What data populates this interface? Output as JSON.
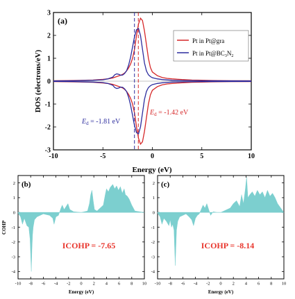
{
  "chart_data": [
    {
      "panel": "(a)",
      "type": "line",
      "xlabel": "Energy (eV)",
      "ylabel": "DOS (electrons/eV)",
      "xlim": [
        -10,
        10
      ],
      "ylim": [
        -3,
        3
      ],
      "xticks": [
        -10,
        -5,
        0,
        5,
        10
      ],
      "yticks": [
        -3,
        -2,
        -1,
        0,
        1,
        2,
        3
      ],
      "legend_position": "top-right",
      "series": [
        {
          "name": "Pt in Pt@gra",
          "color": "#d62728",
          "x": [
            -10,
            -8,
            -6,
            -5,
            -4.5,
            -4,
            -3.6,
            -3.2,
            -3.0,
            -2.8,
            -2.6,
            -2.4,
            -2.2,
            -2.0,
            -1.8,
            -1.6,
            -1.4,
            -1.2,
            -1.0,
            -0.8,
            -0.6,
            -0.4,
            -0.2,
            0,
            0.5,
            1,
            1.5,
            2,
            3,
            4,
            5,
            6,
            8,
            10
          ],
          "y": [
            0.02,
            0.03,
            0.05,
            0.08,
            0.1,
            0.14,
            0.2,
            0.26,
            0.3,
            0.36,
            0.45,
            0.58,
            0.75,
            1.0,
            1.4,
            2.0,
            2.5,
            2.75,
            2.65,
            2.2,
            1.6,
            1.0,
            0.6,
            0.4,
            0.24,
            0.16,
            0.12,
            0.1,
            0.07,
            0.05,
            0.04,
            0.03,
            0.02,
            0.02
          ]
        },
        {
          "name": "Pt in Pt@BC3N2",
          "color": "#2c2c9e",
          "x": [
            -10,
            -8,
            -6,
            -5,
            -4.5,
            -4,
            -3.8,
            -3.6,
            -3.4,
            -3.2,
            -3.0,
            -2.8,
            -2.6,
            -2.4,
            -2.2,
            -2.0,
            -1.8,
            -1.6,
            -1.4,
            -1.2,
            -1.0,
            -0.8,
            -0.6,
            -0.4,
            -0.2,
            0,
            0.5,
            1,
            2,
            3,
            5,
            10
          ],
          "y": [
            0.01,
            0.02,
            0.04,
            0.06,
            0.1,
            0.18,
            0.28,
            0.32,
            0.3,
            0.26,
            0.27,
            0.34,
            0.46,
            0.7,
            1.05,
            1.5,
            1.95,
            2.25,
            2.3,
            2.0,
            1.4,
            0.8,
            0.45,
            0.28,
            0.2,
            0.15,
            0.1,
            0.07,
            0.04,
            0.03,
            0.02,
            0.01
          ]
        }
      ],
      "annotations": [
        {
          "prefix": "E",
          "sub": "d",
          "text": " = -1.81 eV",
          "x": -1.81,
          "color": "#2c2c9e"
        },
        {
          "prefix": "E",
          "sub": "d",
          "text": " = -1.42 eV",
          "x": -1.42,
          "color": "#d62728"
        }
      ]
    },
    {
      "panel": "(b)",
      "type": "area",
      "xlabel": "Energy (eV)",
      "ylabel": "COHP",
      "xlim": [
        -10,
        10
      ],
      "ylim": [
        -4.5,
        2.5
      ],
      "xticks": [
        -10,
        -8,
        -6,
        -4,
        -2,
        0,
        2,
        4,
        6,
        8,
        10
      ],
      "yticks": [
        -4,
        -3,
        -2,
        -1,
        0,
        1,
        2
      ],
      "annotation": "ICOHP = -7.65",
      "color": "#7ccfcf",
      "x": [
        -10,
        -9.6,
        -9.3,
        -9.0,
        -8.6,
        -8.3,
        -8.1,
        -7.9,
        -7.8,
        -7.7,
        -7.6,
        -7.4,
        -7.0,
        -6.5,
        -6.0,
        -5.0,
        -4.5,
        -4.3,
        -4.0,
        -3.6,
        -3.2,
        -3.0,
        -2.7,
        -2.4,
        -2.1,
        -1.8,
        -1.2,
        0,
        1.0,
        1.3,
        1.5,
        1.7,
        1.9,
        2.1,
        2.5,
        3.0,
        3.5,
        3.8,
        4.0,
        4.3,
        4.6,
        5.0,
        5.3,
        5.6,
        5.9,
        6.2,
        6.5,
        6.8,
        7.0,
        7.3,
        7.6,
        8.0,
        8.5,
        10
      ],
      "y": [
        -0.05,
        -0.3,
        -0.8,
        -0.4,
        -0.9,
        -1.0,
        -1.8,
        -4.0,
        -2.5,
        -1.5,
        -1.0,
        -0.5,
        -0.3,
        -0.2,
        -0.1,
        -0.2,
        -0.4,
        -0.8,
        -0.3,
        -0.2,
        0.3,
        0.5,
        0.2,
        0.4,
        0.6,
        0.2,
        0.05,
        0.0,
        0.1,
        0.6,
        1.2,
        1.5,
        0.8,
        0.2,
        0.1,
        0.3,
        0.5,
        1.2,
        1.6,
        1.4,
        1.7,
        1.9,
        1.6,
        1.8,
        1.5,
        1.75,
        1.3,
        1.6,
        1.2,
        1.1,
        0.9,
        0.5,
        0.1,
        0.0
      ]
    },
    {
      "panel": "(c)",
      "type": "area",
      "xlabel": "Energy (eV)",
      "ylabel": "",
      "xlim": [
        -10,
        10
      ],
      "ylim": [
        -4.5,
        2.5
      ],
      "xticks": [
        -10,
        -8,
        -6,
        -4,
        -2,
        0,
        2,
        4,
        6,
        8,
        10
      ],
      "yticks": [
        -4,
        -3,
        -2,
        -1,
        0,
        1,
        2
      ],
      "annotation": "ICOHP = -8.14",
      "color": "#7ccfcf",
      "x": [
        -10,
        -9.6,
        -9.3,
        -9.0,
        -8.6,
        -8.2,
        -8.0,
        -7.8,
        -7.6,
        -7.4,
        -7.2,
        -7.0,
        -6.8,
        -6.5,
        -6.0,
        -5.5,
        -5.0,
        -4.6,
        -4.3,
        -4.0,
        -3.7,
        -3.4,
        -3.0,
        -2.8,
        -2.5,
        -2.2,
        -1.9,
        -1.6,
        -1.2,
        -0.6,
        0,
        0.5,
        1.0,
        1.5,
        2.0,
        2.5,
        3.0,
        3.3,
        3.6,
        3.9,
        4.1,
        4.3,
        4.6,
        5.0,
        5.4,
        5.8,
        6.2,
        6.6,
        7.0,
        7.4,
        7.8,
        8.2,
        8.6,
        9.0,
        10
      ],
      "y": [
        -0.05,
        -0.3,
        -0.8,
        -0.4,
        -0.6,
        -0.9,
        -0.5,
        -1.0,
        -0.8,
        -1.2,
        -3.6,
        -1.2,
        -0.6,
        -0.3,
        -0.2,
        -0.1,
        -0.3,
        -0.5,
        -0.9,
        -0.4,
        -0.2,
        -0.1,
        0.3,
        0.5,
        0.3,
        0.6,
        0.2,
        -0.2,
        0.05,
        0.0,
        0.0,
        0.1,
        0.2,
        0.3,
        0.6,
        0.8,
        0.4,
        1.2,
        0.6,
        1.6,
        2.4,
        1.0,
        1.2,
        1.4,
        1.1,
        1.5,
        1.2,
        1.4,
        1.0,
        1.5,
        1.1,
        1.3,
        1.0,
        0.6,
        0.0
      ]
    }
  ],
  "panel_a": {
    "label": "(a)",
    "xlabel": "Energy (eV)",
    "ylabel": "DOS (electrons/eV)",
    "legend": [
      {
        "text": "Pt in Pt@gra",
        "color": "#d62728"
      },
      {
        "text": "Pt in Pt@BC",
        "sub1": "3",
        "text2": "N",
        "sub2": "2",
        "color": "#2c2c9e"
      }
    ],
    "ed_blue": {
      "e": "E",
      "sub": "d",
      "rest": " = -1.81 eV"
    },
    "ed_red": {
      "e": "E",
      "sub": "d",
      "rest": " = -1.42 eV"
    }
  },
  "panel_b": {
    "label": "(b)",
    "xlabel": "Energy (eV)",
    "ylabel": "COHP",
    "icohp": "ICOHP = -7.65"
  },
  "panel_c": {
    "label": "(c)",
    "xlabel": "Energy (eV)",
    "icohp": "ICOHP = -8.14"
  },
  "colors": {
    "red": "#d62728",
    "blue": "#2c2c9e",
    "cyan_fill": "#7ccfcf",
    "icohp_text": "#e8352c"
  }
}
